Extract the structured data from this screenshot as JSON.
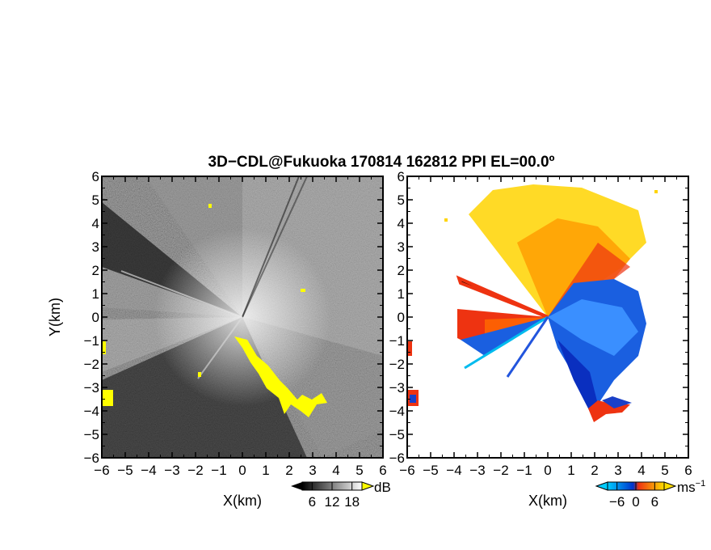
{
  "title": "3D−CDL@Fukuoka 170814 162812 PPI EL=00.0º",
  "chart_data": [
    {
      "type": "heatmap",
      "panel": "reflectivity",
      "xlabel": "X(km)",
      "ylabel": "Y(km)",
      "xlim": [
        -6,
        6
      ],
      "ylim": [
        -6,
        6
      ],
      "xticks": [
        "−6",
        "−5",
        "−4",
        "−3",
        "−2",
        "−1",
        "0",
        "1",
        "2",
        "3",
        "4",
        "5",
        "6"
      ],
      "yticks": [
        "−6",
        "−5",
        "−4",
        "−3",
        "−2",
        "−1",
        "0",
        "1",
        "2",
        "3",
        "4",
        "5",
        "6"
      ],
      "colorbar": {
        "unit": "dB",
        "ticks": [
          "6",
          "12",
          "18"
        ],
        "colors": [
          "#000000",
          "#ffffff"
        ],
        "extend_color": "#ffff00"
      }
    },
    {
      "type": "heatmap",
      "panel": "doppler_velocity",
      "xlabel": "X(km)",
      "ylabel": "",
      "xlim": [
        -6,
        6
      ],
      "ylim": [
        -6,
        6
      ],
      "xticks": [
        "−6",
        "−5",
        "−4",
        "−3",
        "−2",
        "−1",
        "0",
        "1",
        "2",
        "3",
        "4",
        "5",
        "6"
      ],
      "yticks": [
        "−6",
        "−5",
        "−4",
        "−3",
        "−2",
        "−1",
        "0",
        "1",
        "2",
        "3",
        "4",
        "5",
        "6"
      ],
      "colorbar": {
        "unit": "ms",
        "unit_exp": "−1",
        "ticks": [
          "−6",
          "0",
          "6"
        ],
        "colors": [
          "#00ccff",
          "#0033cc",
          "#ee3311",
          "#ffdd00"
        ]
      }
    }
  ]
}
